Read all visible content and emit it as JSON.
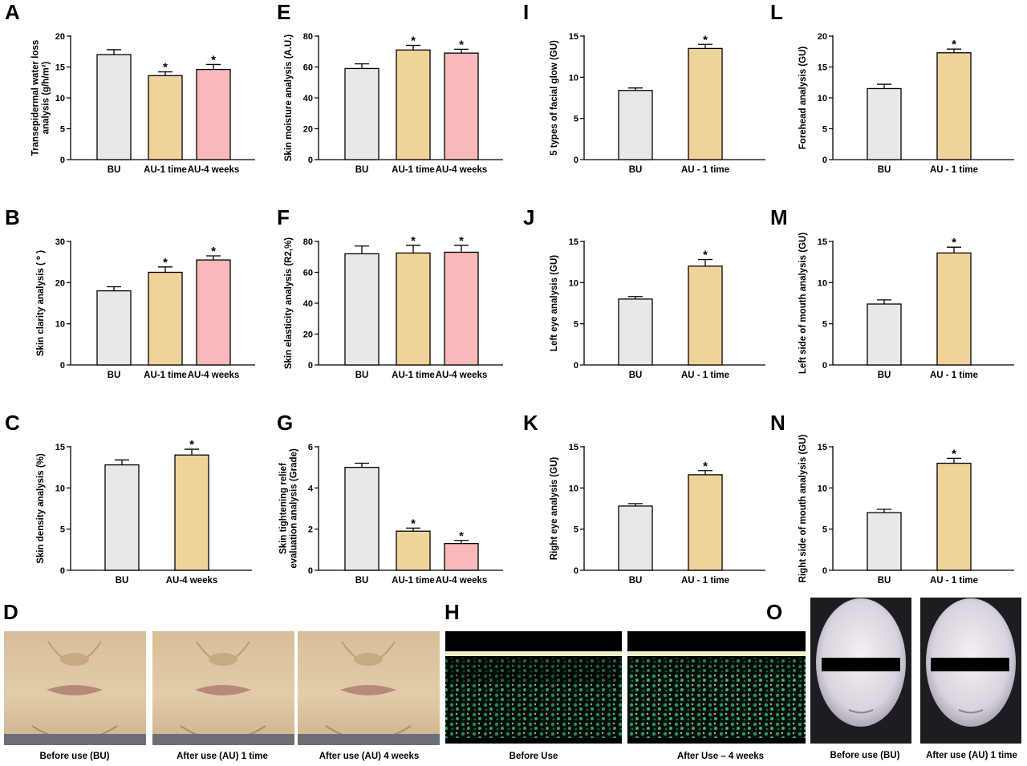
{
  "colors": {
    "BU": "#e8e8e6",
    "AU-1 time": "#efd39b",
    "AU-4 weeks": "#f7b9ba",
    "AU - 1 time": "#efd39b",
    "AU-4 weeks C": "#efd39b"
  },
  "chart_data": [
    {
      "id": "A",
      "type": "bar",
      "ylabel": "Transepidermal water loss analysis (g/h/m²)",
      "ylim": [
        0,
        20
      ],
      "yticks": [
        0,
        5,
        10,
        15,
        20
      ],
      "categories": [
        "BU",
        "AU-1 time",
        "AU-4 weeks"
      ],
      "values": [
        17.0,
        13.6,
        14.6
      ],
      "errors": [
        0.8,
        0.6,
        0.8
      ],
      "significant": [
        false,
        true,
        true
      ],
      "colors": [
        "#e8e8e6",
        "#efd39b",
        "#f7b9ba"
      ]
    },
    {
      "id": "B",
      "type": "bar",
      "ylabel": "Skin clarity analysis ( ⁰ )",
      "ylim": [
        0,
        30
      ],
      "yticks": [
        0,
        10,
        20,
        30
      ],
      "categories": [
        "BU",
        "AU-1 time",
        "AU-4 weeks"
      ],
      "values": [
        18.0,
        22.5,
        25.5
      ],
      "errors": [
        1.0,
        1.3,
        1.0
      ],
      "significant": [
        false,
        true,
        true
      ],
      "colors": [
        "#e8e8e6",
        "#efd39b",
        "#f7b9ba"
      ]
    },
    {
      "id": "C",
      "type": "bar",
      "ylabel": "Skin density analysis (%)",
      "ylim": [
        0,
        15
      ],
      "yticks": [
        0,
        5,
        10,
        15
      ],
      "categories": [
        "BU",
        "AU-4 weeks"
      ],
      "values": [
        12.8,
        14.0
      ],
      "errors": [
        0.6,
        0.7
      ],
      "significant": [
        false,
        true
      ],
      "colors": [
        "#e8e8e6",
        "#efd39b"
      ]
    },
    {
      "id": "E",
      "type": "bar",
      "ylabel": "Skin moisture analysis (A.U.)",
      "ylim": [
        0,
        80
      ],
      "yticks": [
        0,
        20,
        40,
        60,
        80
      ],
      "categories": [
        "BU",
        "AU-1 time",
        "AU-4 weeks"
      ],
      "values": [
        59,
        71,
        69
      ],
      "errors": [
        3,
        3,
        2.5
      ],
      "significant": [
        false,
        true,
        true
      ],
      "colors": [
        "#e8e8e6",
        "#efd39b",
        "#f7b9ba"
      ]
    },
    {
      "id": "F",
      "type": "bar",
      "ylabel": "Skin elasticity analysis (R2,%)",
      "ylim": [
        0,
        80
      ],
      "yticks": [
        0,
        20,
        40,
        60,
        80
      ],
      "categories": [
        "BU",
        "AU-1 time",
        "AU-4 weeks"
      ],
      "values": [
        72,
        72.5,
        73
      ],
      "errors": [
        5,
        5,
        4.5
      ],
      "significant": [
        false,
        true,
        true
      ],
      "colors": [
        "#e8e8e6",
        "#efd39b",
        "#f7b9ba"
      ]
    },
    {
      "id": "G",
      "type": "bar",
      "ylabel": "Skin tightening relief evaluation analysis (Grade)",
      "ylabel_lines": [
        "Skin tightening relief",
        "evaluation analysis (Grade)"
      ],
      "ylim": [
        0,
        6
      ],
      "yticks": [
        0,
        2,
        4,
        6
      ],
      "categories": [
        "BU",
        "AU-1 time",
        "AU-4 weeks"
      ],
      "values": [
        5.0,
        1.9,
        1.3
      ],
      "errors": [
        0.2,
        0.15,
        0.15
      ],
      "significant": [
        false,
        true,
        true
      ],
      "colors": [
        "#e8e8e6",
        "#efd39b",
        "#f7b9ba"
      ]
    },
    {
      "id": "I",
      "type": "bar",
      "ylabel": "5 types of facial glow (GU)",
      "ylim": [
        0,
        15
      ],
      "yticks": [
        0,
        5,
        10,
        15
      ],
      "categories": [
        "BU",
        "AU - 1 time"
      ],
      "values": [
        8.4,
        13.5
      ],
      "errors": [
        0.3,
        0.5
      ],
      "significant": [
        false,
        true
      ],
      "colors": [
        "#e8e8e6",
        "#efd39b"
      ]
    },
    {
      "id": "J",
      "type": "bar",
      "ylabel": "Left eye analysis (GU)",
      "ylim": [
        0,
        15
      ],
      "yticks": [
        0,
        5,
        10,
        15
      ],
      "categories": [
        "BU",
        "AU - 1 time"
      ],
      "values": [
        8.0,
        12.0
      ],
      "errors": [
        0.3,
        0.8
      ],
      "significant": [
        false,
        true
      ],
      "colors": [
        "#e8e8e6",
        "#efd39b"
      ]
    },
    {
      "id": "K",
      "type": "bar",
      "ylabel": "Right eye analysis (GU)",
      "ylim": [
        0,
        15
      ],
      "yticks": [
        0,
        5,
        10,
        15
      ],
      "categories": [
        "BU",
        "AU - 1 time"
      ],
      "values": [
        7.8,
        11.6
      ],
      "errors": [
        0.3,
        0.5
      ],
      "significant": [
        false,
        true
      ],
      "colors": [
        "#e8e8e6",
        "#efd39b"
      ]
    },
    {
      "id": "L",
      "type": "bar",
      "ylabel": "Forehead analysis (GU)",
      "ylim": [
        0,
        20
      ],
      "yticks": [
        0,
        5,
        10,
        15,
        20
      ],
      "categories": [
        "BU",
        "AU - 1 time"
      ],
      "values": [
        11.5,
        17.3
      ],
      "errors": [
        0.7,
        0.6
      ],
      "significant": [
        false,
        true
      ],
      "colors": [
        "#e8e8e6",
        "#efd39b"
      ]
    },
    {
      "id": "M",
      "type": "bar",
      "ylabel": "Left side of mouth analysis (GU)",
      "ylim": [
        0,
        15
      ],
      "yticks": [
        0,
        5,
        10,
        15
      ],
      "categories": [
        "BU",
        "AU - 1 time"
      ],
      "values": [
        7.4,
        13.6
      ],
      "errors": [
        0.5,
        0.7
      ],
      "significant": [
        false,
        true
      ],
      "colors": [
        "#e8e8e6",
        "#efd39b"
      ]
    },
    {
      "id": "N",
      "type": "bar",
      "ylabel": "Right side of mouth analysis (GU)",
      "ylim": [
        0,
        15
      ],
      "yticks": [
        0,
        5,
        10,
        15
      ],
      "categories": [
        "BU",
        "AU - 1 time"
      ],
      "values": [
        7.0,
        13.0
      ],
      "errors": [
        0.4,
        0.6
      ],
      "significant": [
        false,
        true
      ],
      "colors": [
        "#e8e8e6",
        "#efd39b"
      ]
    }
  ],
  "significance_marker": "*",
  "image_panels": {
    "D": {
      "label": "D",
      "captions": [
        "Before use (BU)",
        "After use (AU)  1 time",
        "After use (AU)  4 weeks"
      ]
    },
    "H": {
      "label": "H",
      "captions": [
        "Before Use",
        "After Use – 4 weeks"
      ]
    },
    "O": {
      "label": "O",
      "captions": [
        "Before use (BU)",
        "After use (AU) 1 time"
      ]
    }
  }
}
